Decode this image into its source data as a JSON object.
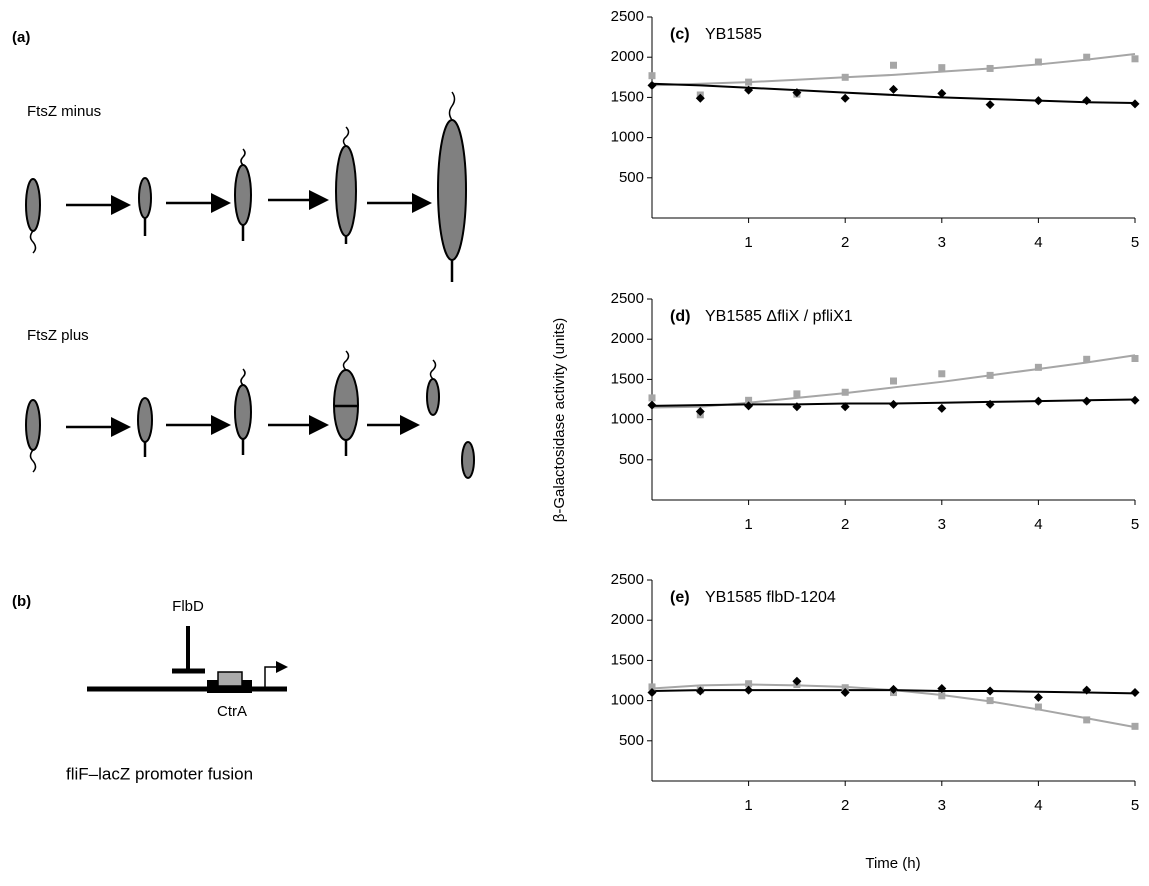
{
  "diagram": {
    "panel_a": "(a)",
    "ftsz_minus": "FtsZ minus",
    "ftsz_plus": "FtsZ plus",
    "panel_b": "(b)",
    "repressor": "FlbD",
    "binding_site": "CtrA",
    "caption": "fliF–lacZ promoter fusion"
  },
  "axis_labels": {
    "y": "β-Galactosidase activity (units)",
    "x": "Time (h)"
  },
  "chart_data": [
    {
      "type": "scatter",
      "panel_label": "(c)",
      "title": "YB1585",
      "x": [
        0,
        0.5,
        1,
        1.5,
        2,
        2.5,
        3,
        3.5,
        4,
        4.5,
        5
      ],
      "xlim": [
        0,
        5
      ],
      "xticks": [
        1,
        2,
        3,
        4,
        5
      ],
      "ylim": [
        0,
        2500
      ],
      "yticks": [
        500,
        1000,
        1500,
        2000,
        2500
      ],
      "series": [
        {
          "marker": "square",
          "color": "#a6a6a6",
          "values": [
            1770,
            1530,
            1690,
            1540,
            1750,
            1900,
            1870,
            1860,
            1940,
            2000,
            1980
          ]
        },
        {
          "marker": "diamond",
          "color": "#000000",
          "values": [
            1650,
            1490,
            1590,
            1560,
            1490,
            1600,
            1550,
            1410,
            1460,
            1460,
            1420
          ]
        },
        {
          "marker": "line",
          "color": "#a6a6a6",
          "values": [
            1650,
            1670,
            1690,
            1720,
            1750,
            1780,
            1820,
            1860,
            1910,
            1970,
            2040
          ]
        },
        {
          "marker": "line",
          "color": "#000000",
          "values": [
            1670,
            1650,
            1620,
            1590,
            1560,
            1530,
            1500,
            1480,
            1460,
            1440,
            1430
          ]
        }
      ]
    },
    {
      "type": "scatter",
      "panel_label": "(d)",
      "title": "YB1585 ΔfliX / pfliX1",
      "x": [
        0,
        0.5,
        1,
        1.5,
        2,
        2.5,
        3,
        3.5,
        4,
        4.5,
        5
      ],
      "xlim": [
        0,
        5
      ],
      "xticks": [
        1,
        2,
        3,
        4,
        5
      ],
      "ylim": [
        0,
        2500
      ],
      "yticks": [
        500,
        1000,
        1500,
        2000,
        2500
      ],
      "series": [
        {
          "marker": "square",
          "color": "#a6a6a6",
          "values": [
            1270,
            1060,
            1240,
            1320,
            1340,
            1480,
            1570,
            1550,
            1650,
            1750,
            1760
          ]
        },
        {
          "marker": "diamond",
          "color": "#000000",
          "values": [
            1180,
            1100,
            1170,
            1160,
            1160,
            1190,
            1140,
            1190,
            1230,
            1230,
            1240
          ]
        },
        {
          "marker": "line",
          "color": "#a6a6a6",
          "values": [
            1150,
            1160,
            1210,
            1270,
            1330,
            1400,
            1470,
            1550,
            1630,
            1710,
            1800
          ]
        },
        {
          "marker": "line",
          "color": "#000000",
          "values": [
            1170,
            1180,
            1190,
            1190,
            1200,
            1200,
            1210,
            1220,
            1230,
            1240,
            1250
          ]
        }
      ]
    },
    {
      "type": "scatter",
      "panel_label": "(e)",
      "title": "YB1585 flbD-1204",
      "x": [
        0,
        0.5,
        1,
        1.5,
        2,
        2.5,
        3,
        3.5,
        4,
        4.5,
        5
      ],
      "xlim": [
        0,
        5
      ],
      "xticks": [
        1,
        2,
        3,
        4,
        5
      ],
      "ylim": [
        0,
        2500
      ],
      "yticks": [
        500,
        1000,
        1500,
        2000,
        2500
      ],
      "series": [
        {
          "marker": "square",
          "color": "#a6a6a6",
          "values": [
            1170,
            1130,
            1210,
            1200,
            1160,
            1100,
            1060,
            1000,
            920,
            760,
            680
          ]
        },
        {
          "marker": "diamond",
          "color": "#000000",
          "values": [
            1100,
            1120,
            1130,
            1240,
            1100,
            1140,
            1150,
            1120,
            1040,
            1130,
            1100
          ]
        },
        {
          "marker": "line",
          "color": "#a6a6a6",
          "values": [
            1150,
            1190,
            1200,
            1190,
            1170,
            1130,
            1070,
            990,
            890,
            780,
            670
          ]
        },
        {
          "marker": "line",
          "color": "#000000",
          "values": [
            1120,
            1130,
            1130,
            1130,
            1130,
            1130,
            1120,
            1120,
            1110,
            1100,
            1090
          ]
        }
      ]
    }
  ]
}
